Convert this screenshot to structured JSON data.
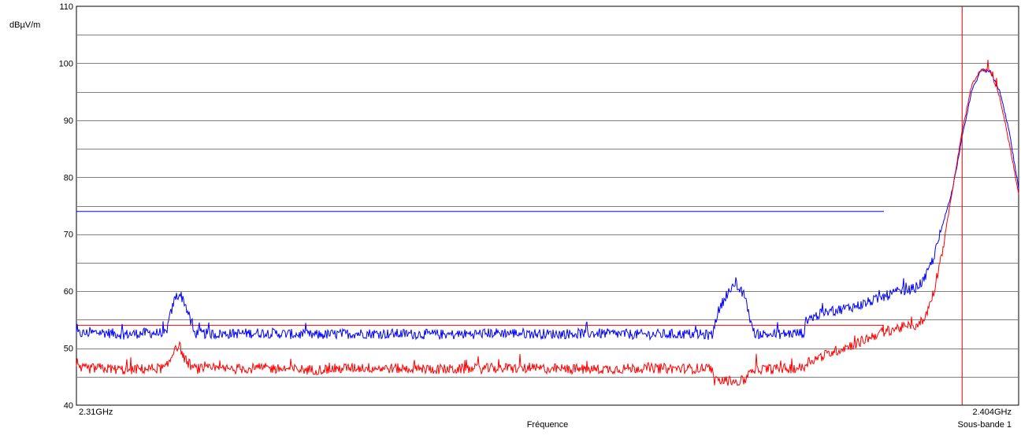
{
  "chart_data": {
    "type": "line",
    "title": "",
    "ylabel": "dBµV/m",
    "xlabel": "Fréquence",
    "x_start_label": "2.31GHz",
    "x_end_label": "2.404GHz",
    "x_end_sublabel": "Sous-bande 1",
    "xlim": [
      2.31,
      2.41
    ],
    "ylim": [
      40,
      110
    ],
    "y_ticks": [
      40,
      50,
      60,
      70,
      80,
      90,
      100,
      110
    ],
    "grid": true,
    "marker_x": 2.404,
    "colors": {
      "peak": "#0000ff",
      "average": "#ff0000",
      "marker": "#cc0000",
      "grid": "#808080"
    },
    "limit_lines": [
      {
        "color": "#0000ff",
        "x": [
          2.31,
          2.3957
        ],
        "y": [
          74,
          74
        ]
      },
      {
        "color": "#ff0000",
        "x": [
          2.31,
          2.3957
        ],
        "y": [
          54,
          54
        ]
      }
    ],
    "series": [
      {
        "color": "#0000ff",
        "x": [
          2.31,
          2.3125,
          2.315,
          2.3175,
          2.3195,
          2.32,
          2.3205,
          2.321,
          2.3215,
          2.3225,
          2.325,
          2.33,
          2.335,
          2.34,
          2.345,
          2.35,
          2.355,
          2.36,
          2.365,
          2.37,
          2.375,
          2.3775,
          2.378,
          2.379,
          2.38,
          2.381,
          2.3815,
          2.382,
          2.3825,
          2.383,
          2.385,
          2.3873,
          2.3874,
          2.389,
          2.391,
          2.393,
          2.395,
          2.397,
          2.399,
          2.4,
          2.401,
          2.402,
          2.403,
          2.404,
          2.405,
          2.406,
          2.407,
          2.408,
          2.409,
          2.41
        ],
        "y": [
          52.5,
          52.8,
          52.4,
          52.7,
          52.6,
          56,
          59,
          59.5,
          58,
          52.6,
          52.5,
          52.7,
          52.3,
          52.6,
          52.5,
          52.4,
          52.7,
          52.5,
          52.6,
          52.4,
          52.5,
          52.3,
          56,
          59.5,
          61,
          59,
          55,
          52.2,
          52.6,
          52.4,
          52.5,
          52.7,
          55,
          56,
          56.8,
          57.5,
          58.6,
          59.8,
          60.5,
          62,
          66,
          72,
          78,
          87,
          95,
          98.8,
          98.5,
          95,
          88,
          78
        ]
      },
      {
        "color": "#ff0000",
        "x": [
          2.31,
          2.3125,
          2.315,
          2.3175,
          2.3195,
          2.32,
          2.3205,
          2.321,
          2.3215,
          2.3225,
          2.325,
          2.33,
          2.335,
          2.34,
          2.345,
          2.35,
          2.355,
          2.36,
          2.365,
          2.37,
          2.375,
          2.3775,
          2.3776,
          2.379,
          2.38,
          2.381,
          2.3815,
          2.382,
          2.3825,
          2.383,
          2.385,
          2.3873,
          2.3874,
          2.389,
          2.391,
          2.393,
          2.395,
          2.397,
          2.399,
          2.4,
          2.401,
          2.402,
          2.403,
          2.404,
          2.405,
          2.406,
          2.407,
          2.408,
          2.409,
          2.41
        ],
        "y": [
          46.3,
          46.5,
          46.2,
          46.4,
          46.5,
          48,
          50.5,
          50.2,
          48,
          46.4,
          46.3,
          46.5,
          46.2,
          46.6,
          46.4,
          46.3,
          46.5,
          46.4,
          46.3,
          46.5,
          46.4,
          46.5,
          44.2,
          44.3,
          44.1,
          44.4,
          46.3,
          46.2,
          46.4,
          46.3,
          46.4,
          46.6,
          47.5,
          48.5,
          49.8,
          51,
          52.5,
          53.5,
          54,
          55,
          60,
          68,
          78,
          88,
          96,
          98.9,
          98.6,
          94,
          86,
          77
        ]
      }
    ]
  }
}
